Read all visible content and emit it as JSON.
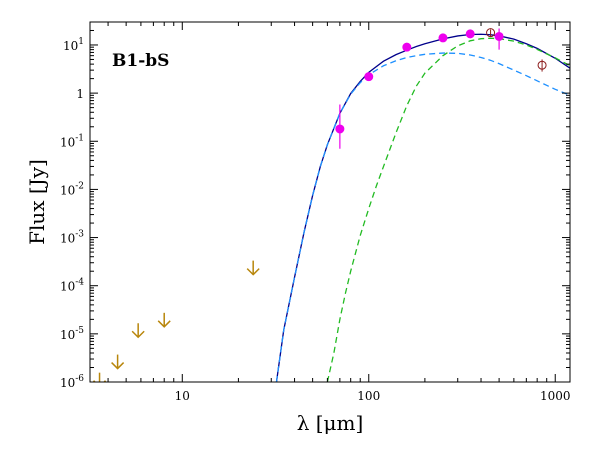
{
  "chart_data": {
    "type": "scatter",
    "title": "",
    "annotation": "B1-bS",
    "xlabel": "λ [μm]",
    "ylabel": "Flux [Jy]",
    "x_scale": "log",
    "y_scale": "log",
    "xlim": [
      3.2,
      1200
    ],
    "ylim": [
      1e-06,
      30
    ],
    "x_ticks": [
      {
        "value": 10,
        "label": "10"
      },
      {
        "value": 100,
        "label": "100"
      },
      {
        "value": 1000,
        "label": "1000"
      }
    ],
    "y_ticks": [
      {
        "value": 1e-06,
        "base": "10",
        "exp": "-6"
      },
      {
        "value": 1e-05,
        "base": "10",
        "exp": "-5"
      },
      {
        "value": 0.0001,
        "base": "10",
        "exp": "-4"
      },
      {
        "value": 0.001,
        "base": "10",
        "exp": "-3"
      },
      {
        "value": 0.01,
        "base": "10",
        "exp": "-2"
      },
      {
        "value": 0.1,
        "base": "10",
        "exp": "-1"
      },
      {
        "value": 1,
        "base": "1",
        "exp": ""
      },
      {
        "value": 10,
        "base": "10",
        "exp": "1"
      }
    ],
    "grid": false,
    "colors": {
      "detections": "#ee00ee",
      "upper_limits": "#b8860b",
      "open_points": "#8b1a1a",
      "model_total": "#00008b",
      "model_warm": "#1e90ff",
      "model_cold": "#22bb22"
    },
    "detections": [
      {
        "x": 70,
        "y": 0.18,
        "err_low": 0.07,
        "err_high": 0.58
      },
      {
        "x": 100,
        "y": 2.2,
        "err_low": 1.9,
        "err_high": 2.5
      },
      {
        "x": 160,
        "y": 9.0,
        "err_low": 8.0,
        "err_high": 10.0
      },
      {
        "x": 250,
        "y": 14.0,
        "err_low": 12.5,
        "err_high": 15.5
      },
      {
        "x": 350,
        "y": 17.0,
        "err_low": 15.0,
        "err_high": 19.0
      },
      {
        "x": 500,
        "y": 15.0,
        "err_low": 8.0,
        "err_high": 22.0
      }
    ],
    "open_points": [
      {
        "x": 450,
        "y": 18.0,
        "err_low": 15.0,
        "err_high": 21.0
      },
      {
        "x": 850,
        "y": 3.8,
        "err_low": 2.8,
        "err_high": 5.0
      }
    ],
    "upper_limits": [
      {
        "x": 3.6,
        "y": 8e-07
      },
      {
        "x": 4.5,
        "y": 1.9e-06
      },
      {
        "x": 5.8,
        "y": 8.5e-06
      },
      {
        "x": 8.0,
        "y": 1.4e-05
      },
      {
        "x": 24,
        "y": 0.00017
      }
    ],
    "series": [
      {
        "style": "solid",
        "color": "#00008b",
        "x": [
          32,
          35,
          40,
          45,
          50,
          55,
          60,
          70,
          80,
          90,
          100,
          120,
          140,
          160,
          180,
          200,
          250,
          300,
          350,
          400,
          450,
          500,
          600,
          700,
          800,
          1000,
          1200
        ],
        "y": [
          1e-06,
          1.2e-05,
          0.00015,
          0.0013,
          0.0075,
          0.03,
          0.085,
          0.38,
          0.98,
          1.75,
          2.7,
          4.6,
          6.3,
          7.8,
          9.3,
          10.6,
          13.4,
          15.4,
          16.5,
          16.7,
          16.3,
          15.5,
          13.2,
          10.6,
          8.5,
          5.3,
          3.3
        ]
      },
      {
        "style": "dashed",
        "color": "#1e90ff",
        "x": [
          32,
          35,
          40,
          45,
          50,
          55,
          60,
          70,
          80,
          90,
          100,
          120,
          140,
          160,
          180,
          200,
          250,
          300,
          350,
          400,
          450,
          500,
          600,
          700,
          800,
          1000,
          1200
        ],
        "y": [
          1e-06,
          1.2e-05,
          0.00015,
          0.0013,
          0.0075,
          0.03,
          0.085,
          0.38,
          0.95,
          1.65,
          2.4,
          3.7,
          4.7,
          5.5,
          6.0,
          6.4,
          6.8,
          6.7,
          6.2,
          5.5,
          4.8,
          4.1,
          3.0,
          2.3,
          1.8,
          1.2,
          0.9
        ]
      },
      {
        "style": "dashed",
        "color": "#22bb22",
        "x": [
          60,
          65,
          70,
          75,
          80,
          90,
          100,
          110,
          120,
          140,
          160,
          180,
          200,
          250,
          300,
          350,
          400,
          450,
          500,
          600,
          700,
          800,
          1000,
          1200
        ],
        "y": [
          1e-06,
          4e-06,
          2e-05,
          7e-05,
          0.0002,
          0.0011,
          0.004,
          0.012,
          0.03,
          0.15,
          0.55,
          1.4,
          2.6,
          6.0,
          9.6,
          12.2,
          13.5,
          13.8,
          13.5,
          12.0,
          10.0,
          8.1,
          5.4,
          3.7
        ]
      }
    ]
  }
}
